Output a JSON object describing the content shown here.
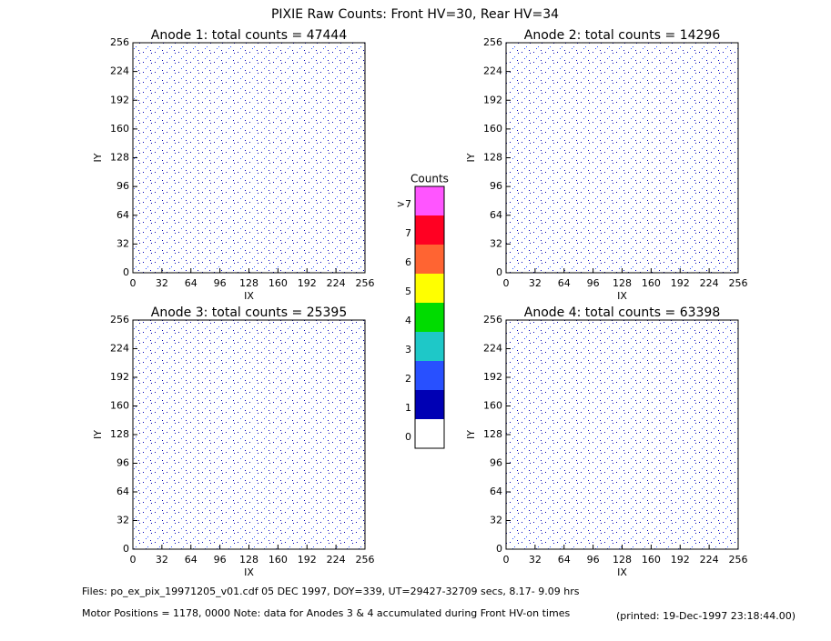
{
  "title": "PIXIE Raw Counts:  Front HV=30, Rear HV=34",
  "chart_data": [
    {
      "type": "heatmap",
      "title": "Anode 1: total counts = 47444",
      "x_label": "IX",
      "y_label": "IY",
      "xlim": [
        0,
        256
      ],
      "ylim": [
        0,
        256
      ],
      "xticks": [
        0,
        32,
        64,
        96,
        128,
        160,
        192,
        224,
        256
      ],
      "yticks": [
        0,
        32,
        64,
        96,
        128,
        160,
        192,
        224,
        256
      ]
    },
    {
      "type": "heatmap",
      "title": "Anode 2: total counts = 14296",
      "x_label": "IX",
      "y_label": "IY",
      "xlim": [
        0,
        256
      ],
      "ylim": [
        0,
        256
      ],
      "xticks": [
        0,
        32,
        64,
        96,
        128,
        160,
        192,
        224,
        256
      ],
      "yticks": [
        0,
        32,
        64,
        96,
        128,
        160,
        192,
        224,
        256
      ]
    },
    {
      "type": "heatmap",
      "title": "Anode 3: total counts = 25395",
      "x_label": "IX",
      "y_label": "IY",
      "xlim": [
        0,
        256
      ],
      "ylim": [
        0,
        256
      ],
      "xticks": [
        0,
        32,
        64,
        96,
        128,
        160,
        192,
        224,
        256
      ],
      "yticks": [
        0,
        32,
        64,
        96,
        128,
        160,
        192,
        224,
        256
      ]
    },
    {
      "type": "heatmap",
      "title": "Anode 4: total counts = 63398",
      "x_label": "IX",
      "y_label": "IY",
      "xlim": [
        0,
        256
      ],
      "ylim": [
        0,
        256
      ],
      "xticks": [
        0,
        32,
        64,
        96,
        128,
        160,
        192,
        224,
        256
      ],
      "yticks": [
        0,
        32,
        64,
        96,
        128,
        160,
        192,
        224,
        256
      ]
    }
  ],
  "colorbar": {
    "title": "Counts",
    "levels": [
      "0",
      "1",
      "2",
      "3",
      "4",
      "5",
      "6",
      "7",
      ">7"
    ],
    "colors": [
      "#ffffff",
      "#0000b4",
      "#2850ff",
      "#1ec8c8",
      "#00dc00",
      "#ffff00",
      "#ff6432",
      "#ff0022",
      "#ff55ff"
    ]
  },
  "footer": {
    "files": "Files: po_ex_pix_19971205_v01.cdf    05 DEC 1997, DOY=339, UT=29427-32709 secs,  8.17- 9.09 hrs",
    "motor": "Motor Positions = 1178, 0000    Note: data for Anodes 3 & 4 accumulated during Front HV-on times",
    "printed": "(printed: 19-Dec-1997 23:18:44.00)"
  }
}
